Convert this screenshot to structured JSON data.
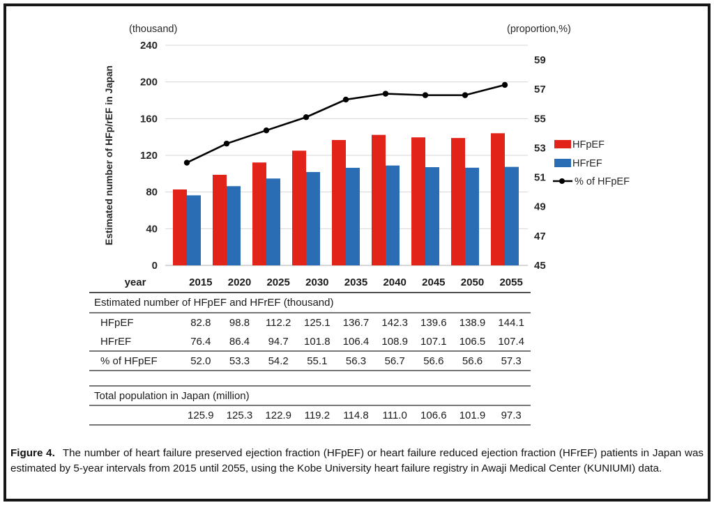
{
  "figure": {
    "caption_label": "Figure 4.",
    "caption_text": "The number of heart failure preserved ejection fraction (HFpEF) or heart failure reduced ejection fraction (HFrEF) patients in Japan was estimated by 5-year intervals from 2015 until 2055, using the Kobe University heart failure registry in Awaji Medical Center (KUNIUMI) data."
  },
  "chart_data": {
    "type": "bar",
    "subtype": "grouped-bars-with-line-overlay",
    "title": "",
    "categories": [
      "2015",
      "2020",
      "2025",
      "2030",
      "2035",
      "2040",
      "2045",
      "2050",
      "2055"
    ],
    "series": [
      {
        "name": "HFpEF",
        "type": "bar",
        "axis": "left",
        "color": "#e2231a",
        "values": [
          82.8,
          98.8,
          112.2,
          125.1,
          136.7,
          142.3,
          139.6,
          138.9,
          144.1
        ]
      },
      {
        "name": "HFrEF",
        "type": "bar",
        "axis": "left",
        "color": "#2a6db4",
        "values": [
          76.4,
          86.4,
          94.7,
          101.8,
          106.4,
          108.9,
          107.1,
          106.5,
          107.4
        ]
      },
      {
        "name": "% of HFpEF",
        "type": "line",
        "axis": "right",
        "color": "#000000",
        "values": [
          52.0,
          53.3,
          54.2,
          55.1,
          56.3,
          56.7,
          56.6,
          56.6,
          57.3
        ]
      }
    ],
    "left_axis": {
      "unit_label": "(thousand)",
      "title": "Estimated number of HFp/rEF in Japan",
      "min": 0,
      "max": 240,
      "ticks": [
        0,
        40,
        80,
        120,
        160,
        200,
        240
      ]
    },
    "right_axis": {
      "unit_label": "(proportion,%)",
      "min": 45,
      "max": 60,
      "ticks": [
        45,
        47,
        49,
        51,
        53,
        55,
        57,
        59
      ]
    },
    "legend": {
      "position": "right",
      "items": [
        "HFpEF",
        "HFrEF",
        "% of HFpEF"
      ]
    },
    "grid": true
  },
  "table": {
    "year_header": "year",
    "years": [
      "2015",
      "2020",
      "2025",
      "2030",
      "2035",
      "2040",
      "2045",
      "2050",
      "2055"
    ],
    "sections": [
      {
        "title": "Estimated number of HFpEF and HFrEF (thousand)",
        "rows": [
          {
            "label": "HFpEF",
            "values": [
              "82.8",
              "98.8",
              "112.2",
              "125.1",
              "136.7",
              "142.3",
              "139.6",
              "138.9",
              "144.1"
            ]
          },
          {
            "label": "HFrEF",
            "values": [
              "76.4",
              "86.4",
              "94.7",
              "101.8",
              "106.4",
              "108.9",
              "107.1",
              "106.5",
              "107.4"
            ]
          },
          {
            "label": "% of HFpEF",
            "values": [
              "52.0",
              "53.3",
              "54.2",
              "55.1",
              "56.3",
              "56.7",
              "56.6",
              "56.6",
              "57.3"
            ]
          }
        ]
      },
      {
        "title": "Total population in Japan (million)",
        "rows": [
          {
            "label": "",
            "values": [
              "125.9",
              "125.3",
              "122.9",
              "119.2",
              "114.8",
              "111.0",
              "106.6",
              "101.9",
              "97.3"
            ]
          }
        ]
      }
    ]
  },
  "colors": {
    "hfpef_red": "#e2231a",
    "hfref_blue": "#2a6db4",
    "line_black": "#000000",
    "gridline": "#d6d6d6",
    "axis_text": "#262626"
  }
}
